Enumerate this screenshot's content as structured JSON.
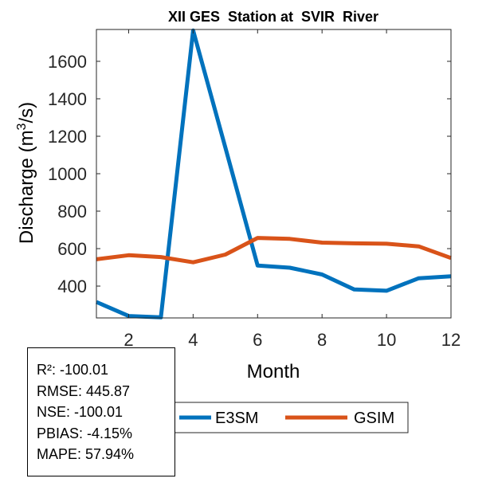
{
  "chart_data": {
    "type": "line",
    "title": "XII GES  Station at  SVIR  River",
    "xlabel": "Month",
    "ylabel": "Discharge (m",
    "ylabel_superscript": "3",
    "ylabel_suffix": "/s)",
    "xlim": [
      1,
      12
    ],
    "ylim": [
      230,
      1770
    ],
    "xticks": [
      2,
      4,
      6,
      8,
      10,
      12
    ],
    "yticks": [
      400,
      600,
      800,
      1000,
      1200,
      1400,
      1600
    ],
    "x": [
      1,
      2,
      3,
      4,
      5,
      6,
      7,
      8,
      9,
      10,
      11,
      12
    ],
    "series": [
      {
        "name": "E3SM",
        "color": "#0072BD",
        "values": [
          315,
          240,
          233,
          1765,
          1140,
          510,
          498,
          462,
          382,
          375,
          442,
          452
        ]
      },
      {
        "name": "GSIM",
        "color": "#D95319",
        "values": [
          543,
          565,
          555,
          527,
          568,
          657,
          652,
          632,
          628,
          626,
          612,
          550
        ]
      }
    ],
    "legend_position": "bottom-center"
  },
  "stats": {
    "r2": "R²: -100.01",
    "rmse": "RMSE: 445.87",
    "nse": "NSE: -100.01",
    "pbias": "PBIAS: -4.15%",
    "mape": "MAPE: 57.94%"
  }
}
